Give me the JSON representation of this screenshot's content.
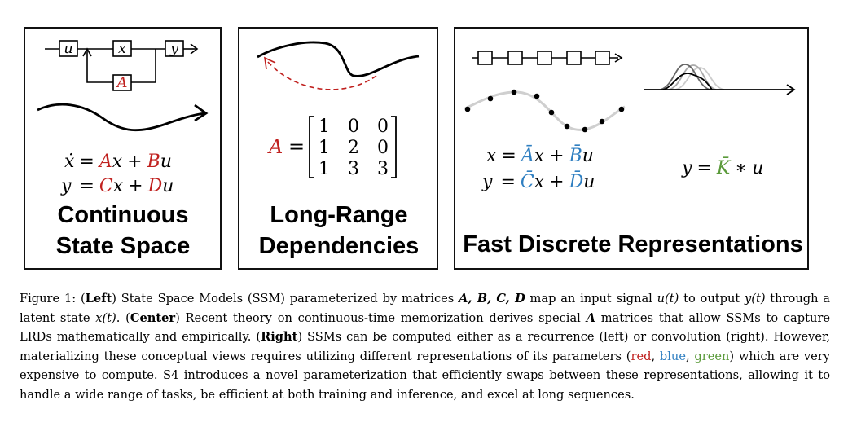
{
  "panels": {
    "left": {
      "diagram": {
        "input": "u",
        "state": "x",
        "output": "y",
        "matrix": "A"
      },
      "eq1": {
        "lhs": "ẋ",
        "eq": "=",
        "a": "A",
        "x1": "x",
        "plus": "+",
        "b": "B",
        "u1": "u"
      },
      "eq2": {
        "lhs": "y",
        "eq": "=",
        "c": "C",
        "x1": "x",
        "plus": "+",
        "d": "D",
        "u1": "u"
      },
      "title_line1": "Continuous",
      "title_line2": "State Space"
    },
    "center": {
      "matrix_name": "A",
      "eq": "=",
      "matrix": [
        [
          "1",
          "0",
          "0"
        ],
        [
          "1",
          "2",
          "0"
        ],
        [
          "1",
          "3",
          "3"
        ]
      ],
      "title_line1": "Long-Range",
      "title_line2": "Dependencies"
    },
    "right": {
      "eq1": {
        "lhs": "x",
        "eq": "=",
        "a": "Ā",
        "x1": "x",
        "plus": "+",
        "b": "B̄",
        "u1": "u"
      },
      "eq2": {
        "lhs": "y",
        "eq": "=",
        "c": "C̄",
        "x1": "x",
        "plus": "+",
        "d": "D̄",
        "u1": "u"
      },
      "eq3": {
        "lhs": "y",
        "eq": "=",
        "k": "K̄",
        "op": "∗",
        "u1": "u"
      },
      "title": "Fast Discrete Representations"
    }
  },
  "colors": {
    "red": "#c0211f",
    "blue": "#2f7fc1",
    "green": "#5a9a3a"
  },
  "caption": {
    "figure": "Figure 1:",
    "left_label": "Left",
    "t1": " State Space Models (SSM) parameterized by matrices ",
    "mats": "A, B, C, D",
    "t2": " map an input signal ",
    "ut": "u(t)",
    "t3": " to output ",
    "yt": "y(t)",
    "t4": " through a latent state ",
    "xt": "x(t)",
    "t5": ". (",
    "center_label": "Center",
    "t6": ") Recent theory on continuous-time memorization derives special ",
    "a": "A",
    "t7": " matrices that allow SSMs to capture LRDs mathematically and empirically. (",
    "right_label": "Right",
    "t8": ") SSMs can be computed either as a recurrence (left) or convolution (right). However, materializing these conceptual views requires utilizing different representations of its parameters (",
    "red": "red",
    "sep1": ", ",
    "blue": "blue",
    "sep2": ", ",
    "green": "green",
    "t9": ") which are very expensive to compute. S4 introduces a novel parameterization that efficiently swaps between these representations, allowing it to handle a wide range of tasks, be efficient at both training and inference, and excel at long sequences."
  }
}
